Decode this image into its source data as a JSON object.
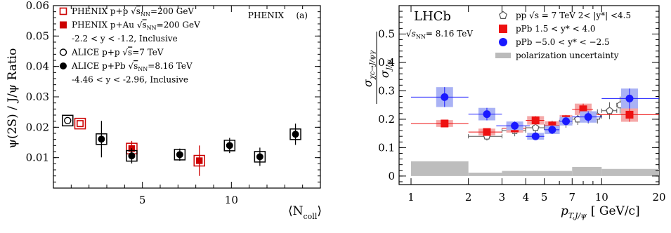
{
  "chart_data": [
    {
      "type": "scatter",
      "ylabel": "ψ(2S) / J/ψ Ratio",
      "xlabel": "⟨N",
      "xlabel_sub": "coll",
      "xlabel_close": "⟩",
      "experiment_label": "PHENIX",
      "panel_label": "(a)",
      "xlim": [
        0,
        15
      ],
      "ylim": [
        0,
        0.06
      ],
      "x_ticks": [
        5,
        10
      ],
      "y_ticks": [
        0.01,
        0.02,
        0.03,
        0.04,
        0.05,
        0.06
      ],
      "y_tick_labels": [
        "0.01",
        "0.02",
        "0.03",
        "0.04",
        "0.05",
        "0.06"
      ],
      "x_tick_labels": [
        "5",
        "10"
      ],
      "legend": {
        "placement": "top-left",
        "items": [
          {
            "key": "phenix_pp",
            "marker": "open-square",
            "color": "#cc0000",
            "text": "PHENIX p+p",
            "sqrt": "s",
            "sqrt_sub": "NN",
            "energy": "=200 GeV"
          },
          {
            "key": "phenix_pau",
            "marker": "filled-square",
            "color": "#cc0000",
            "text": "PHENIX p+Au",
            "sqrt": "s",
            "sqrt_sub": "NN",
            "energy": "=200 GeV"
          },
          {
            "key": "phenix_range",
            "marker": "none",
            "text": "-2.2 < y < -1.2, Inclusive"
          },
          {
            "key": "alice_pp",
            "marker": "open-circle",
            "color": "#000000",
            "text": "ALICE p+p",
            "sqrt": "s",
            "sqrt_sub": "",
            "energy": "=7 TeV"
          },
          {
            "key": "alice_ppb",
            "marker": "filled-circle",
            "color": "#000000",
            "text": "ALICE p+Pb",
            "sqrt": "s",
            "sqrt_sub": "NN",
            "energy": "=8.16 TeV"
          },
          {
            "key": "alice_range",
            "marker": "none",
            "text": "-4.46 < y < -2.96, Inclusive"
          }
        ]
      },
      "series": [
        {
          "key": "phenix_pp",
          "marker": "open-square",
          "color": "#cc0000",
          "points": [
            {
              "x": 1.5,
              "y": 0.0212,
              "err": 0.001,
              "sys_box": true
            }
          ]
        },
        {
          "key": "phenix_pau",
          "marker": "filled-square",
          "color": "#cc0000",
          "points": [
            {
              "x": 4.4,
              "y": 0.013,
              "err": 0.0025,
              "sys_box": true
            },
            {
              "x": 8.2,
              "y": 0.009,
              "err": 0.005,
              "sys_box": true
            }
          ]
        },
        {
          "key": "alice_pp",
          "marker": "open-circle",
          "color": "#000000",
          "points": [
            {
              "x": 0.8,
              "y": 0.0222,
              "err": 0.0005,
              "sys_box": true
            }
          ]
        },
        {
          "key": "alice_ppb",
          "marker": "filled-circle",
          "color": "#000000",
          "points": [
            {
              "x": 2.7,
              "y": 0.0161,
              "err": 0.006,
              "sys_box": true
            },
            {
              "x": 4.4,
              "y": 0.0106,
              "err": 0.0025,
              "sys_box": true
            },
            {
              "x": 7.1,
              "y": 0.011,
              "err": 0.002,
              "sys_box": true
            },
            {
              "x": 9.9,
              "y": 0.014,
              "err": 0.0025,
              "sys_box": true
            },
            {
              "x": 11.6,
              "y": 0.0103,
              "err": 0.003,
              "sys_box": true
            },
            {
              "x": 13.6,
              "y": 0.0177,
              "err": 0.0035,
              "sys_box": true
            }
          ]
        }
      ]
    },
    {
      "type": "scatter",
      "log_x": true,
      "experiment_label": "LHCb",
      "energy_label": "= 8.16 TeV",
      "energy_label_sqrt": "s",
      "energy_label_sub": "NN",
      "ylabel_num": "σ",
      "ylabel_num_sub": "χc→J/ψγ",
      "ylabel_den": "σ",
      "ylabel_den_sub": "J/ψ",
      "xlabel": "p",
      "xlabel_sub": "T,J/ψ",
      "xlabel_unit": "[ GeV/c]",
      "xlim": [
        1,
        20
      ],
      "ylim": [
        -0.03,
        0.6
      ],
      "x_ticks": [
        1,
        2,
        3,
        4,
        5,
        7,
        10,
        20
      ],
      "x_tick_labels": [
        "1",
        "2",
        "3",
        "4",
        "5",
        "7",
        "10",
        "20"
      ],
      "y_ticks": [
        0,
        0.1,
        0.2,
        0.3,
        0.4,
        0.5
      ],
      "y_tick_labels": [
        "0",
        "0.1",
        "0.2",
        "0.3",
        "0.4",
        "0.5"
      ],
      "legend": {
        "placement": "top-right",
        "items": [
          {
            "key": "pp",
            "marker": "open-pentagon",
            "color": "#555555",
            "text": "pp √s = 7 TeV 2< |y*| <4.5"
          },
          {
            "key": "ppb",
            "marker": "filled-square",
            "color": "#ee1111",
            "text": "pPb    1.5 < y* < 4.0"
          },
          {
            "key": "pbp",
            "marker": "filled-circle",
            "color": "#1a1aff",
            "text": "pPb   −5.0 < y* < −2.5"
          },
          {
            "key": "pol",
            "marker": "gray-box",
            "color": "#bbbbbb",
            "text": "polarization uncertainty"
          }
        ]
      },
      "series": [
        {
          "key": "pp",
          "marker": "open-pentagon",
          "color": "#555555",
          "points": [
            {
              "x": 2.5,
              "y": 0.14,
              "xl": 2.0,
              "xh": 3.0,
              "err": 0.015
            },
            {
              "x": 3.5,
              "y": 0.16,
              "xl": 3.0,
              "xh": 4.0,
              "err": 0.02
            },
            {
              "x": 4.5,
              "y": 0.17,
              "xl": 4.0,
              "xh": 5.0,
              "err": 0.02
            },
            {
              "x": 5.5,
              "y": 0.175,
              "xl": 5.0,
              "xh": 6.0,
              "err": 0.02
            },
            {
              "x": 6.5,
              "y": 0.19,
              "xl": 6.0,
              "xh": 7.0,
              "err": 0.02
            },
            {
              "x": 7.5,
              "y": 0.2,
              "xl": 7.0,
              "xh": 8.0,
              "err": 0.02
            },
            {
              "x": 8.5,
              "y": 0.21,
              "xl": 8.0,
              "xh": 9.0,
              "err": 0.025
            },
            {
              "x": 9.5,
              "y": 0.21,
              "xl": 9.0,
              "xh": 10.0,
              "err": 0.025
            },
            {
              "x": 11,
              "y": 0.23,
              "xl": 10.0,
              "xh": 12.0,
              "err": 0.03
            },
            {
              "x": 12.5,
              "y": 0.25,
              "xl": 12.0,
              "xh": 13.0,
              "err": 0.03
            },
            {
              "x": 14,
              "y": 0.26,
              "xl": 13.0,
              "xh": 15.0,
              "err": 0.035
            }
          ]
        },
        {
          "key": "ppb",
          "marker": "filled-square",
          "color": "#ee1111",
          "band": "#f5a8a8",
          "points": [
            {
              "x": 1.5,
              "y": 0.185,
              "xl": 1.0,
              "xh": 2.0,
              "err": 0.012
            },
            {
              "x": 2.5,
              "y": 0.155,
              "xl": 2.0,
              "xh": 3.0,
              "err": 0.012
            },
            {
              "x": 3.5,
              "y": 0.168,
              "xl": 3.0,
              "xh": 4.0,
              "err": 0.015
            },
            {
              "x": 4.5,
              "y": 0.196,
              "xl": 4.0,
              "xh": 5.0,
              "err": 0.015
            },
            {
              "x": 5.5,
              "y": 0.178,
              "xl": 5.0,
              "xh": 6.0,
              "err": 0.015
            },
            {
              "x": 6.5,
              "y": 0.2,
              "xl": 6.0,
              "xh": 7.0,
              "err": 0.015
            },
            {
              "x": 8.0,
              "y": 0.235,
              "xl": 7.0,
              "xh": 9.0,
              "err": 0.02
            },
            {
              "x": 14,
              "y": 0.216,
              "xl": 9.0,
              "xh": 20.0,
              "err": 0.025
            }
          ]
        },
        {
          "key": "pbp",
          "marker": "filled-circle",
          "color": "#1a1aff",
          "band": "#a9b2f5",
          "points": [
            {
              "x": 1.5,
              "y": 0.278,
              "xl": 1.0,
              "xh": 2.0,
              "err": 0.035
            },
            {
              "x": 2.5,
              "y": 0.218,
              "xl": 2.0,
              "xh": 3.0,
              "err": 0.022
            },
            {
              "x": 3.5,
              "y": 0.177,
              "xl": 2.8,
              "xh": 4.2,
              "err": 0.015
            },
            {
              "x": 4.5,
              "y": 0.14,
              "xl": 4.0,
              "xh": 5.0,
              "err": 0.012
            },
            {
              "x": 5.5,
              "y": 0.163,
              "xl": 5.0,
              "xh": 6.0,
              "err": 0.015
            },
            {
              "x": 6.5,
              "y": 0.193,
              "xl": 6.0,
              "xh": 7.0,
              "err": 0.015
            },
            {
              "x": 8.5,
              "y": 0.208,
              "xl": 7.0,
              "xh": 10.0,
              "err": 0.02
            },
            {
              "x": 14,
              "y": 0.273,
              "xl": 10.0,
              "xh": 20.0,
              "err": 0.035
            }
          ]
        }
      ],
      "polarization_band": [
        {
          "xl": 1.0,
          "xh": 2.0,
          "y0": 0.0,
          "y1": 0.052
        },
        {
          "xl": 2.0,
          "xh": 3.0,
          "y0": 0.0,
          "y1": 0.012
        },
        {
          "xl": 3.0,
          "xh": 7.0,
          "y0": 0.0,
          "y1": 0.018
        },
        {
          "xl": 7.0,
          "xh": 10.0,
          "y0": 0.0,
          "y1": 0.032
        },
        {
          "xl": 10.0,
          "xh": 20.0,
          "y0": 0.0,
          "y1": 0.025
        }
      ]
    }
  ]
}
